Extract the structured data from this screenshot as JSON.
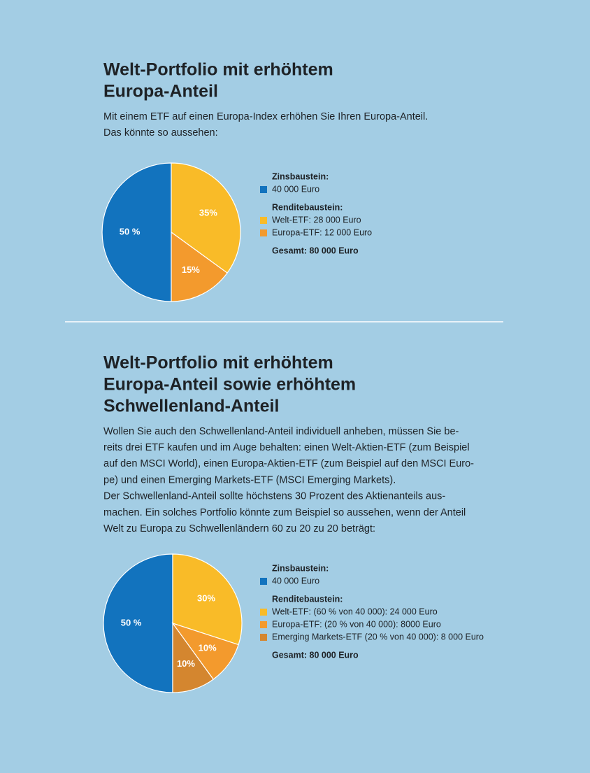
{
  "chart_data": [
    {
      "type": "pie",
      "title": [
        "Welt-Portfolio mit erhöhtem",
        "Europa-Anteil"
      ],
      "description": [
        "Mit einem ETF auf einen Europa-Index erhöhen Sie Ihren Europa-Anteil.",
        "Das könnte so aussehen:"
      ],
      "interest_heading": "Zinsbaustein:",
      "return_heading": "Renditebaustein:",
      "total": "Gesamt: 80 000 Euro",
      "categories": [
        "40 000 Euro",
        "Welt-ETF: 28 000 Euro",
        "Europa-ETF: 12 000 Euro"
      ],
      "values": [
        50,
        35,
        15
      ],
      "value_labels": [
        "50 %",
        "35%",
        "15%"
      ],
      "colors": [
        "#1273be",
        "#f9bb28",
        "#f39a2d"
      ]
    },
    {
      "type": "pie",
      "title": [
        "Welt-Portfolio mit erhöhtem",
        "Europa-Anteil sowie erhöhtem",
        "Schwellenland-Anteil"
      ],
      "description": [
        "Wollen Sie auch den Schwellenland-Anteil individuell anheben, müssen Sie be-",
        "reits drei ETF kaufen und im Auge behalten: einen Welt-Aktien-ETF (zum Beispiel",
        "auf den MSCI World), einen Europa-Aktien-ETF (zum Beispiel auf den MSCI Euro-",
        "pe) und einen Emerging Markets-ETF (MSCI Emerging Markets).",
        "Der Schwellenland-Anteil sollte höchstens 30 Prozent des Aktienanteils aus-",
        "machen. Ein solches Portfolio könnte zum Beispiel so aussehen, wenn der Anteil",
        "Welt zu Europa zu Schwellenländern 60 zu 20 zu 20 beträgt:"
      ],
      "interest_heading": "Zinsbaustein:",
      "return_heading": "Renditebaustein:",
      "total": "Gesamt: 80 000 Euro",
      "categories": [
        "40 000 Euro",
        "Welt-ETF: (60 % von 40 000): 24 000 Euro",
        "Europa-ETF: (20 % von 40 000): 8000 Euro",
        "Emerging Markets-ETF (20 % von 40 000): 8 000 Euro"
      ],
      "values": [
        50,
        30,
        10,
        10
      ],
      "value_labels": [
        "50 %",
        "30%",
        "10%",
        "10%"
      ],
      "colors": [
        "#1273be",
        "#f9bb28",
        "#f39a2d",
        "#d4862f"
      ]
    }
  ]
}
